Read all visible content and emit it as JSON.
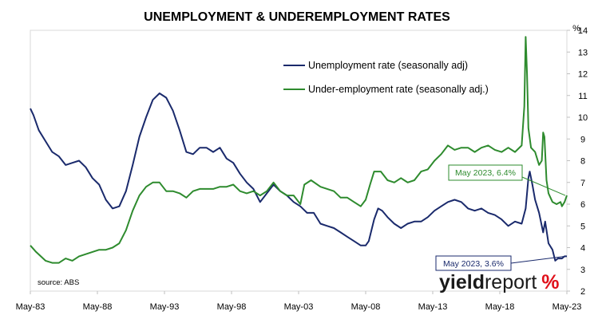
{
  "chart_data": {
    "type": "line",
    "title": "UNEMPLOYMENT & UNDEREMPLOYMENT RATES",
    "y_unit_label": "%",
    "x_ticks": [
      "May-83",
      "May-88",
      "May-93",
      "May-98",
      "May-03",
      "May-08",
      "May-13",
      "May-18",
      "May-23"
    ],
    "x_range": [
      1983.37,
      2023.37
    ],
    "y_range": [
      2,
      14
    ],
    "y_ticks": [
      2,
      3,
      4,
      5,
      6,
      7,
      8,
      9,
      10,
      11,
      12,
      13,
      14
    ],
    "legend_position": "top-center",
    "source": "source: ABS",
    "series": [
      {
        "name": "Unemployment rate (seasonally adj)",
        "color": "#1a2a6c",
        "points": [
          [
            1983.37,
            10.4
          ],
          [
            1983.6,
            10.1
          ],
          [
            1984.0,
            9.4
          ],
          [
            1984.5,
            8.9
          ],
          [
            1985.0,
            8.4
          ],
          [
            1985.5,
            8.2
          ],
          [
            1986.0,
            7.8
          ],
          [
            1986.5,
            7.9
          ],
          [
            1987.0,
            8.0
          ],
          [
            1987.5,
            7.7
          ],
          [
            1988.0,
            7.2
          ],
          [
            1988.5,
            6.9
          ],
          [
            1989.0,
            6.2
          ],
          [
            1989.5,
            5.8
          ],
          [
            1990.0,
            5.9
          ],
          [
            1990.5,
            6.6
          ],
          [
            1991.0,
            7.8
          ],
          [
            1991.5,
            9.1
          ],
          [
            1992.0,
            10.0
          ],
          [
            1992.5,
            10.8
          ],
          [
            1993.0,
            11.1
          ],
          [
            1993.5,
            10.9
          ],
          [
            1994.0,
            10.3
          ],
          [
            1994.5,
            9.4
          ],
          [
            1995.0,
            8.4
          ],
          [
            1995.5,
            8.3
          ],
          [
            1996.0,
            8.6
          ],
          [
            1996.5,
            8.6
          ],
          [
            1997.0,
            8.4
          ],
          [
            1997.5,
            8.6
          ],
          [
            1998.0,
            8.1
          ],
          [
            1998.5,
            7.9
          ],
          [
            1999.0,
            7.4
          ],
          [
            1999.5,
            7.0
          ],
          [
            2000.0,
            6.7
          ],
          [
            2000.5,
            6.1
          ],
          [
            2001.0,
            6.5
          ],
          [
            2001.5,
            6.9
          ],
          [
            2002.0,
            6.6
          ],
          [
            2002.5,
            6.4
          ],
          [
            2003.0,
            6.1
          ],
          [
            2003.5,
            5.9
          ],
          [
            2004.0,
            5.6
          ],
          [
            2004.5,
            5.6
          ],
          [
            2005.0,
            5.1
          ],
          [
            2005.5,
            5.0
          ],
          [
            2006.0,
            4.9
          ],
          [
            2006.5,
            4.7
          ],
          [
            2007.0,
            4.5
          ],
          [
            2007.5,
            4.3
          ],
          [
            2008.0,
            4.1
          ],
          [
            2008.37,
            4.1
          ],
          [
            2008.6,
            4.3
          ],
          [
            2009.0,
            5.3
          ],
          [
            2009.3,
            5.8
          ],
          [
            2009.6,
            5.7
          ],
          [
            2010.0,
            5.4
          ],
          [
            2010.5,
            5.1
          ],
          [
            2011.0,
            4.9
          ],
          [
            2011.5,
            5.1
          ],
          [
            2012.0,
            5.2
          ],
          [
            2012.5,
            5.2
          ],
          [
            2013.0,
            5.4
          ],
          [
            2013.5,
            5.7
          ],
          [
            2014.0,
            5.9
          ],
          [
            2014.5,
            6.1
          ],
          [
            2015.0,
            6.2
          ],
          [
            2015.5,
            6.1
          ],
          [
            2016.0,
            5.8
          ],
          [
            2016.5,
            5.7
          ],
          [
            2017.0,
            5.8
          ],
          [
            2017.5,
            5.6
          ],
          [
            2018.0,
            5.5
          ],
          [
            2018.5,
            5.3
          ],
          [
            2019.0,
            5.0
          ],
          [
            2019.5,
            5.2
          ],
          [
            2020.0,
            5.1
          ],
          [
            2020.3,
            5.8
          ],
          [
            2020.5,
            7.2
          ],
          [
            2020.6,
            7.5
          ],
          [
            2020.8,
            6.9
          ],
          [
            2021.0,
            6.2
          ],
          [
            2021.3,
            5.6
          ],
          [
            2021.6,
            4.7
          ],
          [
            2021.75,
            5.2
          ],
          [
            2022.0,
            4.2
          ],
          [
            2022.3,
            3.9
          ],
          [
            2022.5,
            3.4
          ],
          [
            2022.7,
            3.5
          ],
          [
            2023.0,
            3.5
          ],
          [
            2023.2,
            3.6
          ],
          [
            2023.37,
            3.6
          ]
        ]
      },
      {
        "name": "Under-employment rate (seasonally adj.)",
        "color": "#2e8b2e",
        "points": [
          [
            1983.37,
            4.1
          ],
          [
            1983.8,
            3.8
          ],
          [
            1984.5,
            3.4
          ],
          [
            1985.0,
            3.3
          ],
          [
            1985.5,
            3.3
          ],
          [
            1986.0,
            3.5
          ],
          [
            1986.5,
            3.4
          ],
          [
            1987.0,
            3.6
          ],
          [
            1987.5,
            3.7
          ],
          [
            1988.0,
            3.8
          ],
          [
            1988.5,
            3.9
          ],
          [
            1989.0,
            3.9
          ],
          [
            1989.5,
            4.0
          ],
          [
            1990.0,
            4.2
          ],
          [
            1990.5,
            4.8
          ],
          [
            1991.0,
            5.7
          ],
          [
            1991.5,
            6.4
          ],
          [
            1992.0,
            6.8
          ],
          [
            1992.5,
            7.0
          ],
          [
            1993.0,
            7.0
          ],
          [
            1993.5,
            6.6
          ],
          [
            1994.0,
            6.6
          ],
          [
            1994.5,
            6.5
          ],
          [
            1995.0,
            6.3
          ],
          [
            1995.5,
            6.6
          ],
          [
            1996.0,
            6.7
          ],
          [
            1996.5,
            6.7
          ],
          [
            1997.0,
            6.7
          ],
          [
            1997.5,
            6.8
          ],
          [
            1998.0,
            6.8
          ],
          [
            1998.5,
            6.9
          ],
          [
            1999.0,
            6.6
          ],
          [
            1999.5,
            6.5
          ],
          [
            2000.0,
            6.6
          ],
          [
            2000.5,
            6.4
          ],
          [
            2001.0,
            6.6
          ],
          [
            2001.5,
            7.0
          ],
          [
            2002.0,
            6.6
          ],
          [
            2002.5,
            6.4
          ],
          [
            2003.0,
            6.4
          ],
          [
            2003.5,
            6.0
          ],
          [
            2003.8,
            6.9
          ],
          [
            2004.3,
            7.1
          ],
          [
            2005.0,
            6.8
          ],
          [
            2005.5,
            6.7
          ],
          [
            2006.0,
            6.6
          ],
          [
            2006.5,
            6.3
          ],
          [
            2007.0,
            6.3
          ],
          [
            2007.5,
            6.1
          ],
          [
            2008.0,
            5.9
          ],
          [
            2008.37,
            6.2
          ],
          [
            2008.7,
            6.9
          ],
          [
            2009.0,
            7.5
          ],
          [
            2009.5,
            7.5
          ],
          [
            2010.0,
            7.1
          ],
          [
            2010.5,
            7.0
          ],
          [
            2011.0,
            7.2
          ],
          [
            2011.5,
            7.0
          ],
          [
            2012.0,
            7.1
          ],
          [
            2012.5,
            7.5
          ],
          [
            2013.0,
            7.6
          ],
          [
            2013.5,
            8.0
          ],
          [
            2014.0,
            8.3
          ],
          [
            2014.5,
            8.7
          ],
          [
            2015.0,
            8.5
          ],
          [
            2015.5,
            8.6
          ],
          [
            2016.0,
            8.6
          ],
          [
            2016.5,
            8.4
          ],
          [
            2017.0,
            8.6
          ],
          [
            2017.5,
            8.7
          ],
          [
            2018.0,
            8.5
          ],
          [
            2018.5,
            8.4
          ],
          [
            2019.0,
            8.6
          ],
          [
            2019.5,
            8.4
          ],
          [
            2020.0,
            8.7
          ],
          [
            2020.2,
            10.5
          ],
          [
            2020.3,
            13.7
          ],
          [
            2020.4,
            12.0
          ],
          [
            2020.5,
            9.5
          ],
          [
            2020.7,
            8.6
          ],
          [
            2021.0,
            8.4
          ],
          [
            2021.3,
            7.8
          ],
          [
            2021.5,
            8.0
          ],
          [
            2021.6,
            9.3
          ],
          [
            2021.7,
            9.1
          ],
          [
            2021.85,
            7.1
          ],
          [
            2022.0,
            6.5
          ],
          [
            2022.3,
            6.1
          ],
          [
            2022.6,
            6.0
          ],
          [
            2022.9,
            6.1
          ],
          [
            2023.0,
            5.9
          ],
          [
            2023.2,
            6.1
          ],
          [
            2023.37,
            6.4
          ]
        ]
      }
    ],
    "annotations": [
      {
        "text": "May 2023, 6.4%",
        "series": 1,
        "x": 2023.37,
        "y": 6.4
      },
      {
        "text": "May 2023, 3.6%",
        "series": 0,
        "x": 2023.37,
        "y": 3.6
      }
    ]
  },
  "branding": {
    "logo_main": "yield",
    "logo_light": "report",
    "logo_pct": "%"
  }
}
